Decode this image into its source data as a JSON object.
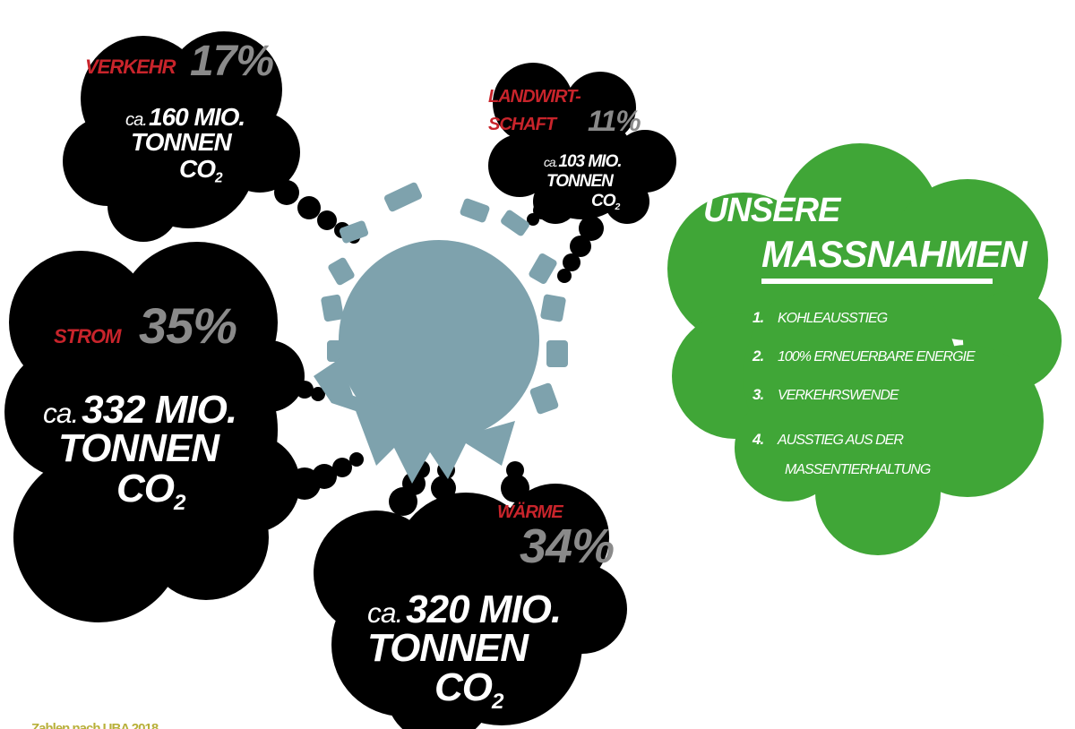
{
  "clouds": [
    {
      "sector": [
        "VERKEHR"
      ],
      "share": "17%",
      "prefix": "ca.",
      "amount": "160 MIO.",
      "unit": "TONNEN",
      "gas": "CO",
      "subscript": "2"
    },
    {
      "sector": [
        "LANDWIRT-",
        "SCHAFT"
      ],
      "share": "11%",
      "prefix": "ca.",
      "amount": "103 MIO.",
      "unit": "TONNEN",
      "gas": "CO",
      "subscript": "2"
    },
    {
      "sector": [
        "STROM"
      ],
      "share": "35%",
      "prefix": "ca.",
      "amount": "332 MIO.",
      "unit": "TONNEN",
      "gas": "CO",
      "subscript": "2"
    },
    {
      "sector": [
        "WÄRME"
      ],
      "share": "34%",
      "prefix": "ca.",
      "amount": "320 MIO.",
      "unit": "TONNEN",
      "gas": "CO",
      "subscript": "2"
    }
  ],
  "measures": {
    "title": [
      "UNSERE",
      "MASSNAHMEN"
    ],
    "items": [
      {
        "number": "1.",
        "text": [
          "KOHLEAUSSTIEG"
        ]
      },
      {
        "number": "2.",
        "text": [
          "100% ERNEUERBARE ENERGIE"
        ]
      },
      {
        "number": "3.",
        "text": [
          "VERKEHRSWENDE"
        ]
      },
      {
        "number": "4.",
        "text": [
          "AUSSTIEG AUS DER",
          "MASSENTIERHALTUNG"
        ]
      }
    ]
  },
  "source": "Zahlen nach UBA 2018"
}
